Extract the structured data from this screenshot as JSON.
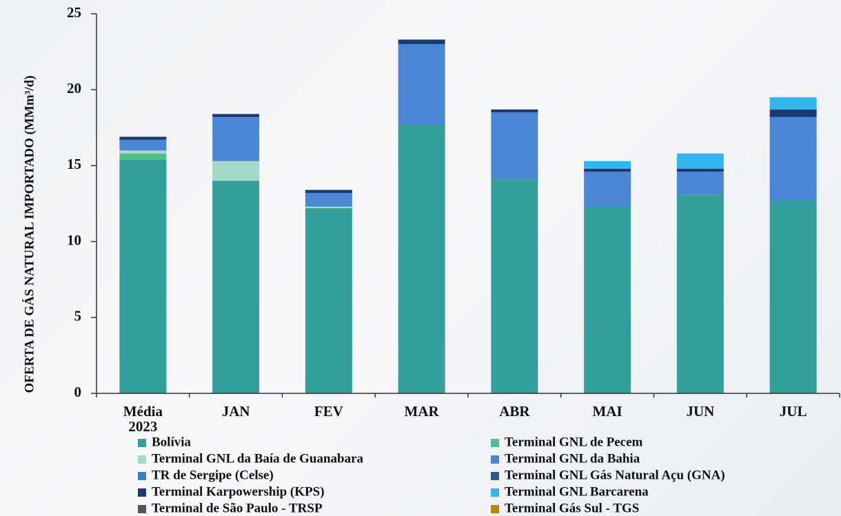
{
  "chart_data": {
    "type": "stacked_bar",
    "y_label": "OFERTA DE GÁS NATURAL IMPORTADO (MMm³/d)",
    "categories": [
      "Média 2023",
      "JAN",
      "FEV",
      "MAR",
      "ABR",
      "MAI",
      "JUN",
      "JUL"
    ],
    "series": [
      {
        "name": "Bolívia",
        "color": "#339e9a",
        "values": [
          15.4,
          14.0,
          12.2,
          17.7,
          14.1,
          12.3,
          13.1,
          12.7
        ]
      },
      {
        "name": "Terminal GNL de Pecem",
        "color": "#4fc08d",
        "values": [
          0.4,
          0,
          0,
          0,
          0,
          0,
          0,
          0
        ]
      },
      {
        "name": "Terminal GNL da Baía de Guanabara",
        "color": "#a6d9c9",
        "values": [
          0.2,
          1.3,
          0.1,
          0,
          0,
          0,
          0,
          0
        ]
      },
      {
        "name": "Terminal GNL da Bahia",
        "color": "#4a86d4",
        "values": [
          0.7,
          2.9,
          0.9,
          5.3,
          4.4,
          2.3,
          1.5,
          5.5
        ]
      },
      {
        "name": "TR de Sergipe (Celse)",
        "color": "#3a7fc4",
        "values": [
          0,
          0,
          0,
          0,
          0,
          0,
          0,
          0
        ]
      },
      {
        "name": "Terminal GNL Gás Natural Açu (GNA)",
        "color": "#2a5a8a",
        "values": [
          0,
          0,
          0,
          0,
          0,
          0,
          0,
          0
        ]
      },
      {
        "name": "Terminal Karpowership (KPS)",
        "color": "#1b3a6e",
        "values": [
          0.2,
          0.2,
          0.2,
          0.3,
          0.2,
          0.2,
          0.2,
          0.5
        ]
      },
      {
        "name": "Terminal GNL Barcarena",
        "color": "#33b5f0",
        "values": [
          0,
          0,
          0,
          0,
          0,
          0.5,
          1.0,
          0.8
        ]
      },
      {
        "name": "Terminal de São Paulo - TRSP",
        "color": "#555555",
        "values": [
          0,
          0,
          0,
          0,
          0,
          0,
          0,
          0
        ]
      },
      {
        "name": "Terminal Gás Sul - TGS",
        "color": "#b8860b",
        "values": [
          0,
          0,
          0,
          0,
          0,
          0,
          0,
          0
        ]
      }
    ],
    "ylim": [
      0,
      25
    ],
    "yticks": [
      0,
      5,
      10,
      15,
      20,
      25
    ],
    "grid": false
  }
}
